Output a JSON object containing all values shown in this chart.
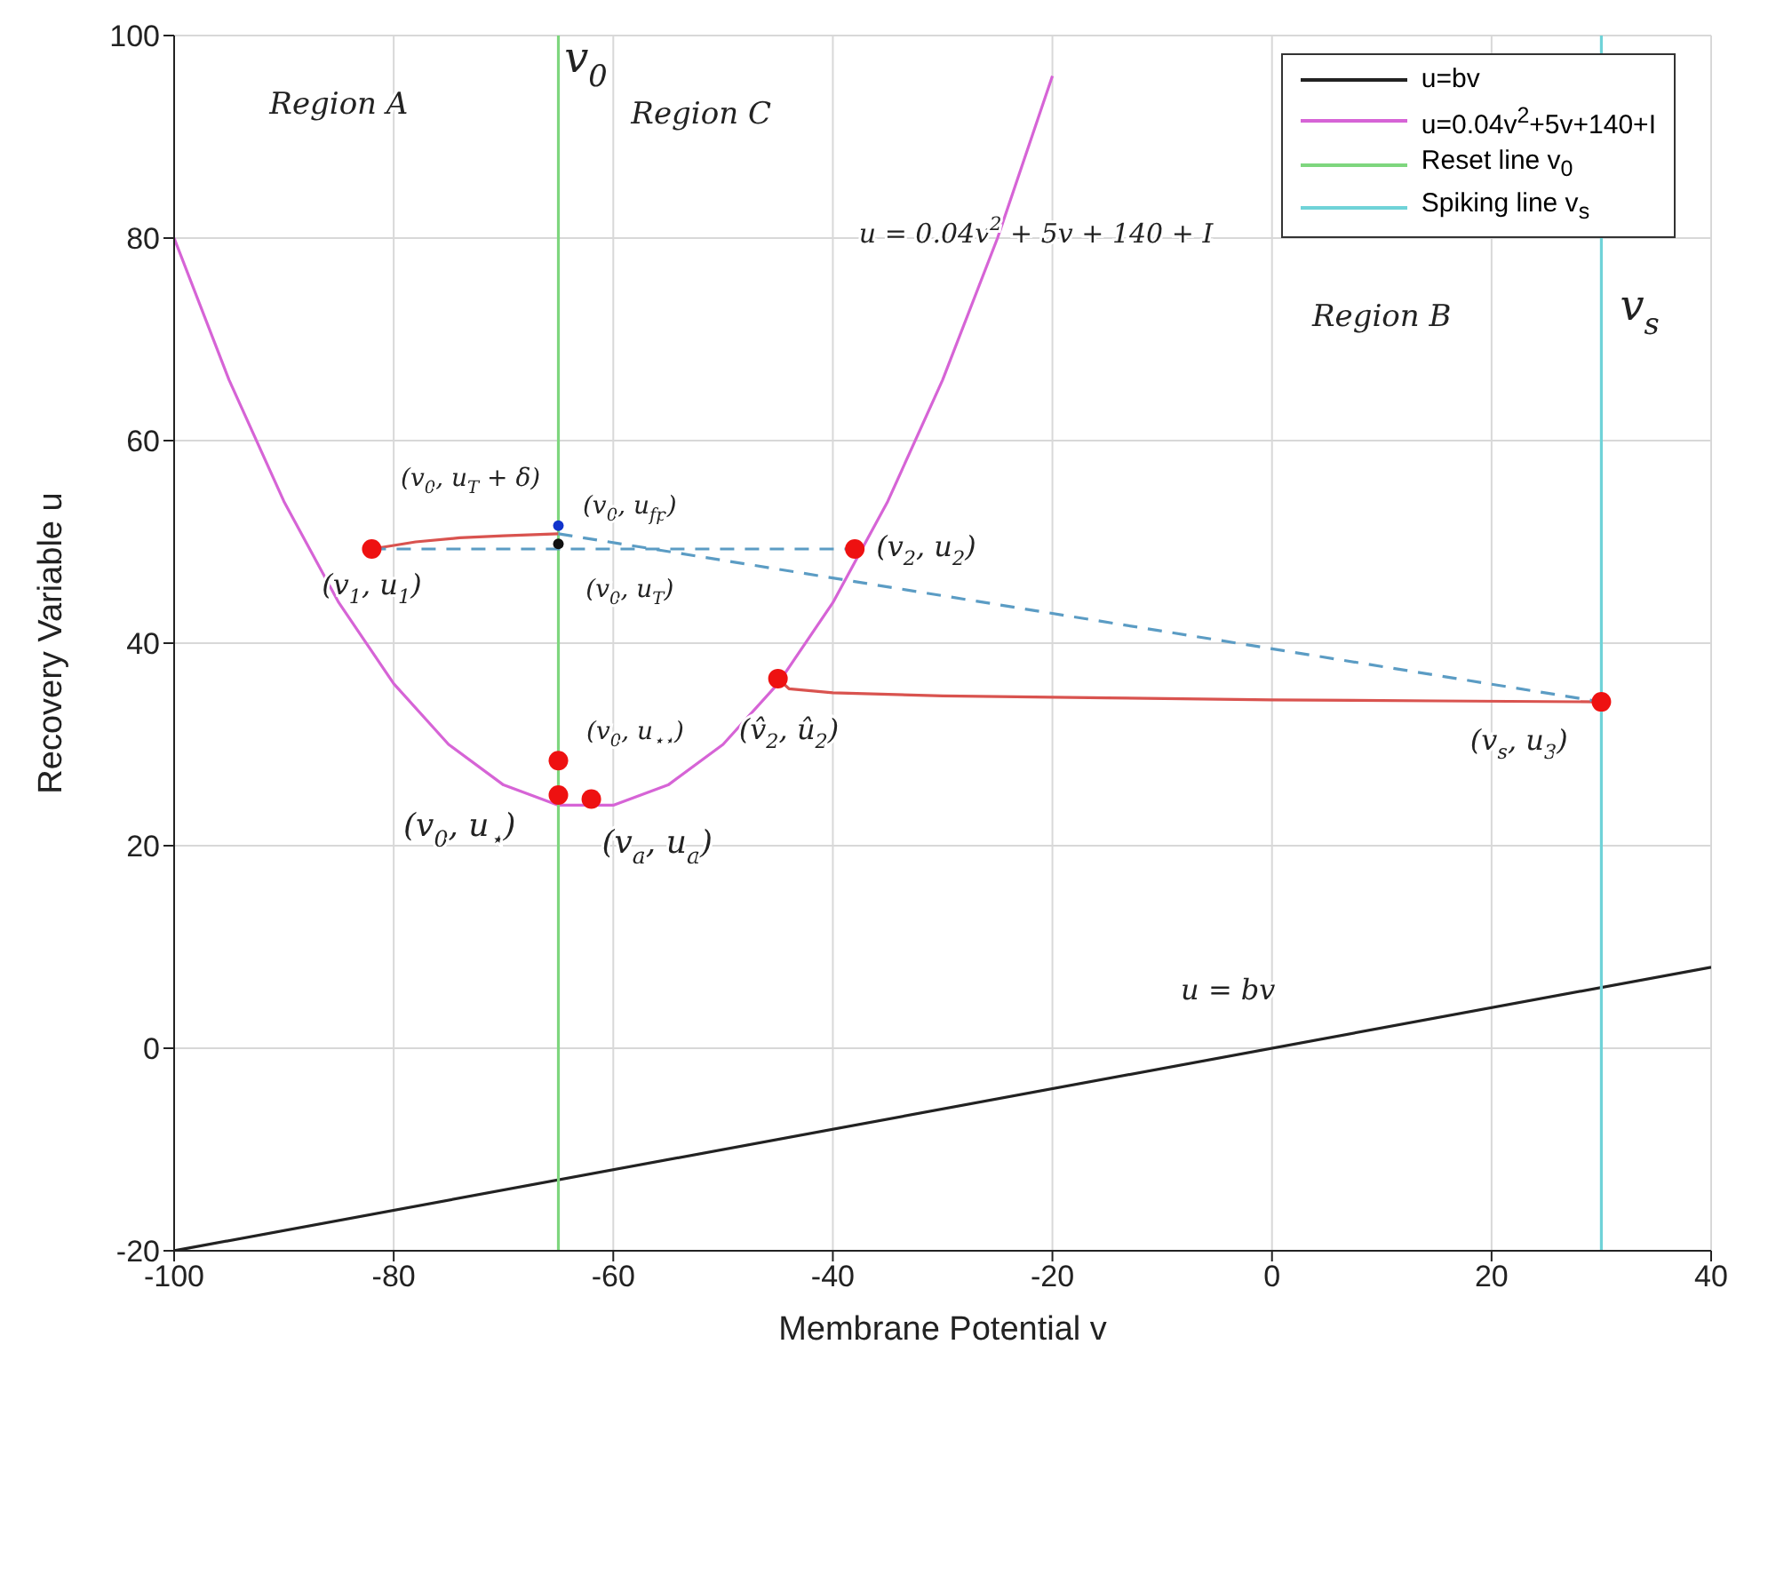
{
  "chart_data": {
    "type": "line",
    "xlabel": "Membrane Potential v",
    "ylabel": "Recovery Variable u",
    "xlim": [
      -100,
      40
    ],
    "xticks": [
      -100,
      -80,
      -60,
      -40,
      -20,
      0,
      20,
      40
    ],
    "ylim": [
      -20,
      100
    ],
    "yticks": [
      -20,
      0,
      20,
      40,
      60,
      80,
      100
    ],
    "grid": true,
    "legend": "top right",
    "series": [
      {
        "name": "u=bv",
        "color": "#222222",
        "x": [
          -100,
          40
        ],
        "values": [
          -20,
          8
        ]
      },
      {
        "name": "u=0.04v$^{2}$+5v+140+I",
        "color": "#d664d6",
        "x": [
          -100,
          -95,
          -90,
          -85,
          -80,
          -75,
          -70,
          -65,
          -60,
          -55,
          -50,
          -45,
          -40,
          -35,
          -30,
          -25,
          -20
        ],
        "values": [
          80,
          66,
          54,
          44,
          36,
          30,
          26,
          24,
          24,
          26,
          30,
          36,
          44,
          54,
          66,
          80,
          96
        ]
      },
      {
        "name": "Reset line v$_{0}$",
        "color": "#7ed67e",
        "x": [
          -65,
          -65
        ],
        "values": [
          -20,
          100
        ]
      },
      {
        "name": "Spiking line v$_{s}$",
        "color": "#6fd3d8",
        "x": [
          30,
          30
        ],
        "values": [
          -20,
          100
        ]
      },
      {
        "color": "#d9534f",
        "x": [
          -82,
          -78,
          -74,
          -70,
          -65
        ],
        "values": [
          49.3,
          50.0,
          50.4,
          50.6,
          50.8
        ]
      },
      {
        "color": "#d9534f",
        "x": [
          -45,
          -44,
          -40,
          -30,
          -15,
          0,
          15,
          30
        ],
        "values": [
          36.5,
          35.5,
          35.1,
          34.8,
          34.6,
          34.4,
          34.3,
          34.2
        ]
      },
      {
        "line_style": "dashed",
        "color": "#5b9cc4",
        "x": [
          -82,
          -38
        ],
        "values": [
          49.3,
          49.3
        ]
      },
      {
        "line_style": "dashed",
        "color": "#5b9cc4",
        "x": [
          -65,
          30
        ],
        "values": [
          50.8,
          34.2
        ]
      },
      {
        "type": "scatter",
        "color": "#ee1111",
        "x": [
          -82,
          -65,
          -65,
          -62,
          -45,
          30,
          -38
        ],
        "values": [
          49.3,
          28.4,
          25.0,
          24.6,
          36.5,
          34.2,
          49.3
        ]
      },
      {
        "type": "scatter",
        "colors": [
          "#1133cc",
          "#111111"
        ],
        "x": [
          -65,
          -65
        ],
        "values": [
          51.6,
          49.8
        ]
      }
    ],
    "annotations": [
      "Region A",
      "Region C",
      "Region B",
      "u = 0.04v$^{2}$ + 5v + 140 + I",
      "v$_{0}$",
      "v$_{s}$",
      "u = bv",
      "(v$_{0}$, u$_{T}$ + δ)",
      "(v$_{0}$, u$_{fp}$)",
      "(v$_{1}$, u$_{1}$)",
      "(v$_{0}$, u$_{T}$)",
      "(v$_{2}$, u$_{2}$)",
      "(v̂$_{2}$, û$_{2}$)",
      "(v$_{0}$, u$_{⋆⋆}$)",
      "(v$_{0}$, u$_{⋆}$)",
      "(v$_{a}$, u$_{a}$)",
      "(v$_{s}$, u$_{3}$)"
    ]
  }
}
